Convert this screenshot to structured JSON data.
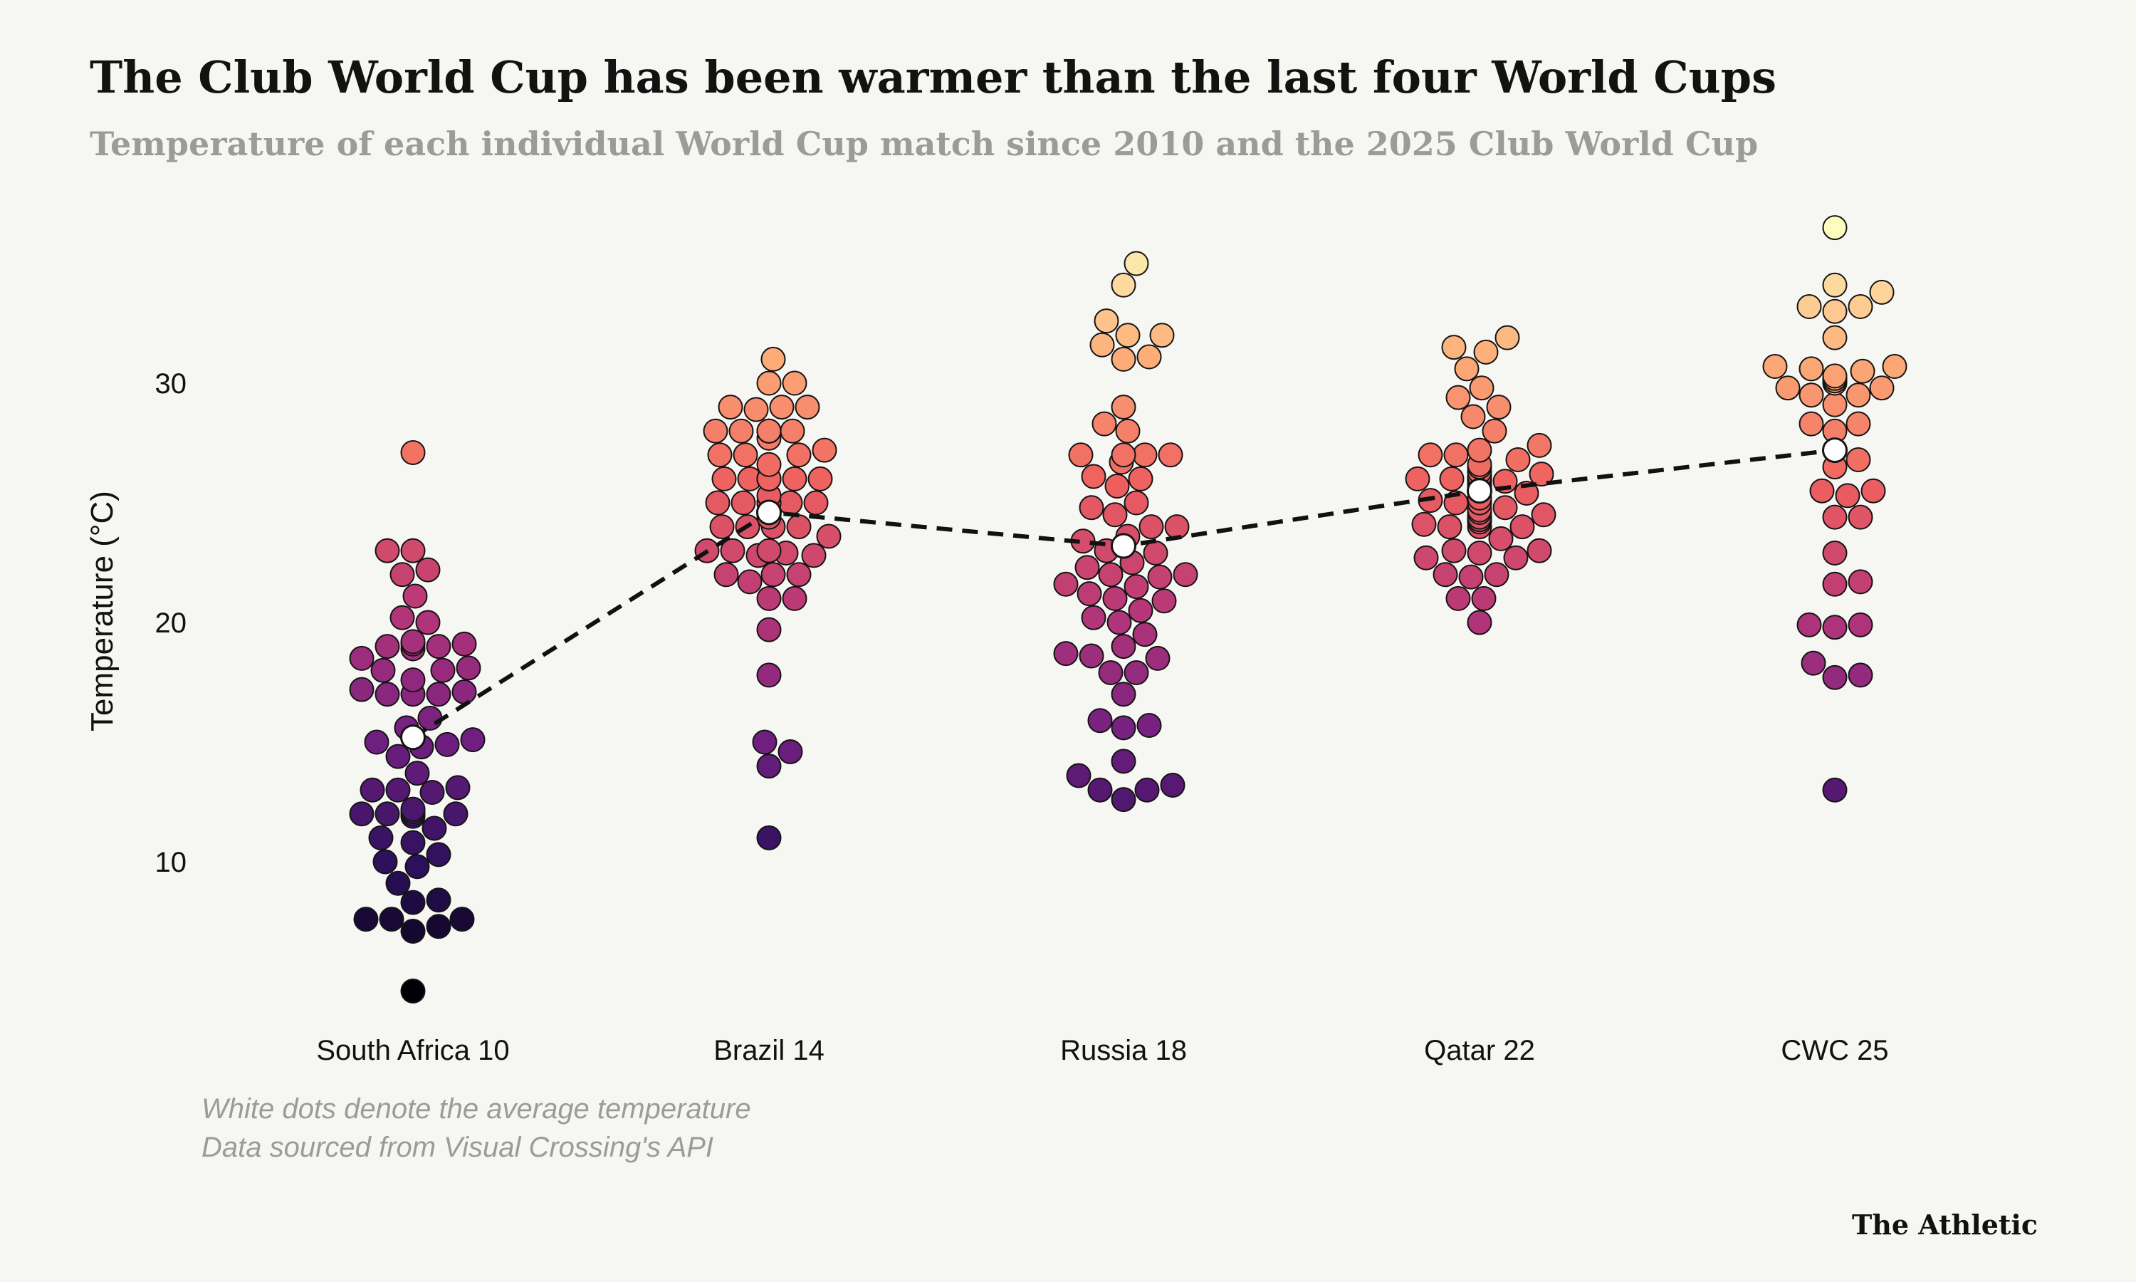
{
  "chart_data": {
    "type": "scatter",
    "title": "The Club World Cup has been warmer than the last four World Cups",
    "subtitle": "Temperature of each individual World Cup match since 2010 and the 2025 Club World Cup",
    "ylabel": "Temperature (°C)",
    "yticks": [
      "10",
      "20",
      "30"
    ],
    "ylim": [
      3.5,
      37
    ],
    "grid": false,
    "notes": [
      "White dots denote the average temperature",
      "Data sourced from Visual Crossing's API"
    ],
    "brand": "The Athletic",
    "color_scale": {
      "min": 4.5,
      "max": 36.5,
      "stops": [
        "#000004",
        "#2c105c",
        "#711f81",
        "#b63679",
        "#ee605e",
        "#fdae78",
        "#fcfdbf"
      ]
    },
    "average_marker_color": "#ffffff",
    "average_line": "dashed",
    "series": [
      {
        "category": "South Africa 10",
        "mean": 15.2,
        "values": [
          4.6,
          7.1,
          7.3,
          7.6,
          7.6,
          7.6,
          8.3,
          8.4,
          9.1,
          9.8,
          10.0,
          10.3,
          10.8,
          11.0,
          11.4,
          11.9,
          12.0,
          12.0,
          12.0,
          12.0,
          12.1,
          12.2,
          12.9,
          13.0,
          13.0,
          13.1,
          13.7,
          14.4,
          14.8,
          14.9,
          15.0,
          15.1,
          15.6,
          16.0,
          17.0,
          17.0,
          17.0,
          17.1,
          17.2,
          17.6,
          18.0,
          18.0,
          18.1,
          18.5,
          18.9,
          19.0,
          19.0,
          19.1,
          19.1,
          19.2,
          20.0,
          20.2,
          21.1,
          22.0,
          22.2,
          23.0,
          23.0,
          27.1
        ]
      },
      {
        "category": "Brazil 14",
        "mean": 24.6,
        "values": [
          11.0,
          14.0,
          14.6,
          15.0,
          17.8,
          19.7,
          21.0,
          21.0,
          21.7,
          22.0,
          22.0,
          22.0,
          22.8,
          22.8,
          22.9,
          23.0,
          23.0,
          23.0,
          23.6,
          24.0,
          24.0,
          24.0,
          24.0,
          24.4,
          25.0,
          25.0,
          25.0,
          25.0,
          25.0,
          25.0,
          25.0,
          25.3,
          26.0,
          26.0,
          26.0,
          26.0,
          26.0,
          26.0,
          26.0,
          26.0,
          26.6,
          27.0,
          27.0,
          27.0,
          27.2,
          27.7,
          28.0,
          28.0,
          28.0,
          28.0,
          28.0,
          28.0,
          28.9,
          29.0,
          29.0,
          29.0,
          30.0,
          30.0,
          31.0
        ]
      },
      {
        "category": "Russia 18",
        "mean": 23.2,
        "values": [
          12.6,
          13.0,
          13.0,
          13.2,
          13.6,
          14.2,
          15.6,
          15.7,
          15.9,
          17.0,
          17.9,
          17.9,
          18.5,
          18.6,
          18.7,
          19.0,
          19.5,
          20.0,
          20.2,
          20.5,
          20.9,
          21.0,
          21.2,
          21.5,
          21.6,
          21.9,
          22.0,
          22.0,
          22.3,
          22.5,
          22.9,
          23.0,
          23.4,
          23.6,
          24.0,
          24.0,
          24.5,
          24.8,
          25.0,
          25.7,
          26.0,
          26.1,
          26.7,
          27.0,
          27.0,
          27.0,
          27.0,
          28.0,
          28.3,
          29.0,
          31.0,
          31.1,
          31.6,
          32.0,
          32.0,
          32.6,
          34.1,
          35.0
        ]
      },
      {
        "category": "Qatar 22",
        "mean": 25.5,
        "values": [
          20.0,
          21.0,
          21.0,
          21.9,
          22.0,
          22.0,
          22.7,
          22.7,
          22.9,
          23.0,
          23.0,
          23.5,
          24.0,
          24.0,
          24.0,
          24.1,
          24.2,
          24.3,
          24.3,
          24.3,
          24.4,
          24.4,
          24.5,
          24.6,
          24.7,
          24.8,
          25.0,
          25.0,
          25.0,
          25.0,
          25.1,
          25.2,
          25.4,
          25.6,
          25.6,
          25.7,
          25.8,
          25.9,
          26.0,
          26.0,
          26.0,
          26.0,
          26.0,
          26.0,
          26.0,
          26.1,
          26.2,
          26.3,
          26.5,
          26.6,
          26.8,
          27.0,
          27.0,
          27.2,
          27.4,
          28.0,
          28.6,
          29.0,
          29.4,
          29.8,
          30.6,
          31.3,
          31.5,
          31.9
        ]
      },
      {
        "category": "CWC 25",
        "mean": 27.2,
        "values": [
          13.0,
          17.7,
          17.8,
          18.3,
          19.8,
          19.9,
          19.9,
          21.6,
          21.7,
          22.9,
          24.4,
          24.4,
          25.3,
          25.5,
          25.5,
          26.5,
          26.8,
          28.0,
          28.3,
          28.3,
          29.1,
          29.5,
          29.5,
          29.8,
          29.8,
          30.0,
          30.1,
          30.1,
          30.2,
          30.2,
          30.3,
          30.5,
          30.6,
          30.7,
          30.7,
          31.9,
          33.0,
          33.2,
          33.2,
          33.8,
          34.1,
          36.5
        ]
      }
    ]
  }
}
